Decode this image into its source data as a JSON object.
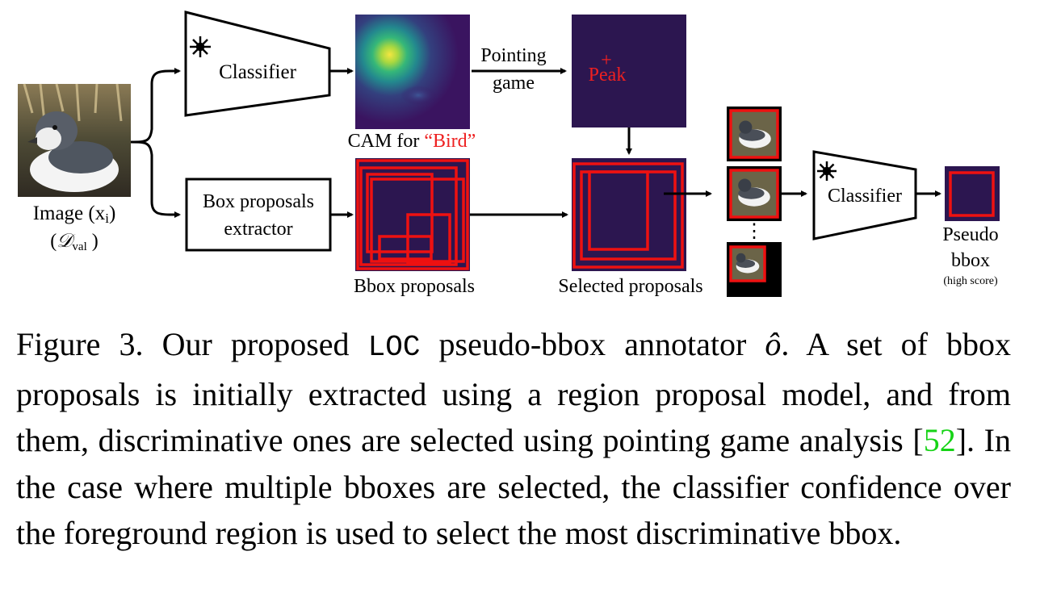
{
  "diagram": {
    "image_label": "Image (x",
    "image_label_sub": "i",
    "image_label_close": ")",
    "dataset_label": "𝒟",
    "dataset_sub": "val",
    "classifier_top": "Classifier",
    "box_proposals_line1": "Box proposals",
    "box_proposals_line2": "extractor",
    "cam_label_prefix": "CAM for ",
    "cam_label_class": "“Bird”",
    "pointing_line1": "Pointing",
    "pointing_line2": "game",
    "peak_label": "Peak",
    "peak_marker": "+",
    "bbox_proposals_label": "Bbox proposals",
    "selected_proposals_label": "Selected proposals",
    "dots": "⋮",
    "classifier_right": "Classifier",
    "pseudo_line1": "Pseudo",
    "pseudo_line2": "bbox",
    "pseudo_line3": "(high score)",
    "frozen_icon": "snowflake-icon",
    "colors": {
      "box_red": "#ee1111",
      "map_purple": "#2c1650",
      "label_red": "#ee2020",
      "cite_green": "#16d316"
    }
  },
  "caption": {
    "prefix": "Figure 3.  Our proposed ",
    "method": "LOC",
    "mid": " pseudo-bbox annotator ",
    "symbol": "ô",
    "after_symbol": ".  A set of bbox proposals is initially extracted using a region proposal model, and from them, discriminative ones are selected using pointing game analysis [",
    "citation": "52",
    "suffix": "].  In the case where multiple bboxes are selected, the classifier confidence over the foreground region is used to select the most discriminative bbox."
  }
}
